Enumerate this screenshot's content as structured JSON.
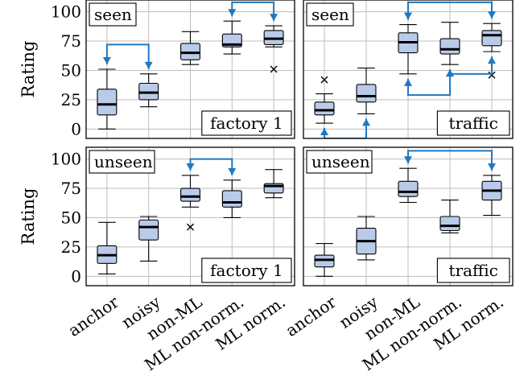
{
  "chart_data": [
    {
      "type": "box",
      "panel_label": "seen",
      "dataset_label": "factory 1",
      "ylabel": "Rating",
      "ylim": [
        -8,
        110
      ],
      "yticks": [
        0,
        25,
        50,
        75,
        100
      ],
      "categories": [
        "anchor",
        "noisy",
        "non-ML",
        "ML non-norm.",
        "ML norm."
      ],
      "boxes": [
        {
          "min": 0,
          "q1": 12,
          "median": 21,
          "q3": 34,
          "max": 51,
          "outliers": []
        },
        {
          "min": 19,
          "q1": 25,
          "median": 31,
          "q3": 39,
          "max": 47,
          "outliers": []
        },
        {
          "min": 55,
          "q1": 59,
          "median": 65,
          "q3": 73,
          "max": 83,
          "outliers": []
        },
        {
          "min": 64,
          "q1": 70,
          "median": 72,
          "q3": 81,
          "max": 92,
          "outliers": []
        },
        {
          "min": 70,
          "q1": 72,
          "median": 77,
          "q3": 84,
          "max": 88,
          "outliers": [
            51
          ]
        }
      ],
      "links": [
        {
          "from": 0,
          "to": 1,
          "level": 72
        },
        {
          "from": 3,
          "to": 4,
          "level": 108
        }
      ]
    },
    {
      "type": "box",
      "panel_label": "seen",
      "dataset_label": "traffic",
      "ylabel": "",
      "ylim": [
        -8,
        110
      ],
      "yticks": [
        0,
        25,
        50,
        75,
        100
      ],
      "categories": [
        "anchor",
        "noisy",
        "non-ML",
        "ML non-norm.",
        "ML norm."
      ],
      "boxes": [
        {
          "min": 5,
          "q1": 12,
          "median": 16,
          "q3": 23,
          "max": 30,
          "outliers": [
            42
          ]
        },
        {
          "min": 13,
          "q1": 23,
          "median": 28,
          "q3": 38,
          "max": 52,
          "outliers": []
        },
        {
          "min": 47,
          "q1": 65,
          "median": 74,
          "q3": 82,
          "max": 89,
          "outliers": []
        },
        {
          "min": 55,
          "q1": 64,
          "median": 68,
          "q3": 77,
          "max": 91,
          "outliers": []
        },
        {
          "min": 66,
          "q1": 71,
          "median": 80,
          "q3": 84,
          "max": 90,
          "outliers": [
            46
          ]
        }
      ],
      "links": [
        {
          "from": 0,
          "to": 1,
          "level": -8
        },
        {
          "from": 2,
          "to": 3,
          "level": 29
        },
        {
          "from": 3,
          "to": 4,
          "level": 47
        },
        {
          "from": 2,
          "to": 4,
          "level": 108
        }
      ]
    },
    {
      "type": "box",
      "panel_label": "unseen",
      "dataset_label": "factory 1",
      "ylabel": "Rating",
      "ylim": [
        -8,
        110
      ],
      "yticks": [
        0,
        25,
        50,
        75,
        100
      ],
      "categories": [
        "anchor",
        "noisy",
        "non-ML",
        "ML non-norm.",
        "ML norm."
      ],
      "boxes": [
        {
          "min": 2,
          "q1": 11,
          "median": 18,
          "q3": 26,
          "max": 46,
          "outliers": []
        },
        {
          "min": 13,
          "q1": 31,
          "median": 42,
          "q3": 48,
          "max": 51,
          "outliers": []
        },
        {
          "min": 59,
          "q1": 64,
          "median": 68,
          "q3": 75,
          "max": 86,
          "outliers": [
            42
          ]
        },
        {
          "min": 50,
          "q1": 59,
          "median": 63,
          "q3": 73,
          "max": 82,
          "outliers": []
        },
        {
          "min": 67,
          "q1": 71,
          "median": 77,
          "q3": 79,
          "max": 91,
          "outliers": []
        }
      ],
      "links": [
        {
          "from": 2,
          "to": 3,
          "level": 100
        }
      ]
    },
    {
      "type": "box",
      "panel_label": "unseen",
      "dataset_label": "traffic",
      "ylabel": "",
      "ylim": [
        -8,
        110
      ],
      "yticks": [
        0,
        25,
        50,
        75,
        100
      ],
      "categories": [
        "anchor",
        "noisy",
        "non-ML",
        "ML non-norm.",
        "ML norm."
      ],
      "boxes": [
        {
          "min": 0,
          "q1": 8,
          "median": 14,
          "q3": 18,
          "max": 28,
          "outliers": []
        },
        {
          "min": 14,
          "q1": 19,
          "median": 30,
          "q3": 41,
          "max": 51,
          "outliers": []
        },
        {
          "min": 63,
          "q1": 68,
          "median": 72,
          "q3": 81,
          "max": 92,
          "outliers": []
        },
        {
          "min": 37,
          "q1": 39,
          "median": 43,
          "q3": 51,
          "max": 65,
          "outliers": []
        },
        {
          "min": 52,
          "q1": 65,
          "median": 73,
          "q3": 81,
          "max": 86,
          "outliers": []
        }
      ],
      "links": [
        {
          "from": 2,
          "to": 4,
          "level": 107
        }
      ]
    }
  ]
}
